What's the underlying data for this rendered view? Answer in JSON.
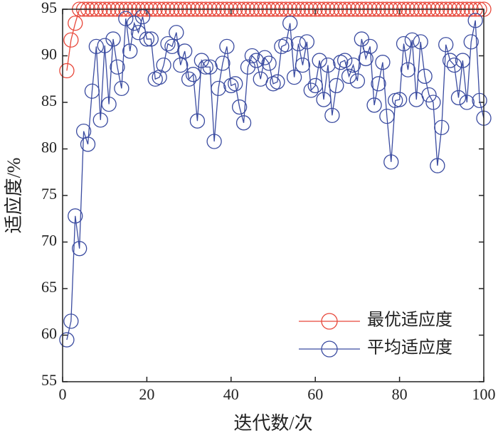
{
  "chart_data": {
    "type": "line",
    "xlabel": "迭代数/次",
    "ylabel": "适应度/%",
    "x": [
      1,
      2,
      3,
      4,
      5,
      6,
      7,
      8,
      9,
      10,
      11,
      12,
      13,
      14,
      15,
      16,
      17,
      18,
      19,
      20,
      21,
      22,
      23,
      24,
      25,
      26,
      27,
      28,
      29,
      30,
      31,
      32,
      33,
      34,
      35,
      36,
      37,
      38,
      39,
      40,
      41,
      42,
      43,
      44,
      45,
      46,
      47,
      48,
      49,
      50,
      51,
      52,
      53,
      54,
      55,
      56,
      57,
      58,
      59,
      60,
      61,
      62,
      63,
      64,
      65,
      66,
      67,
      68,
      69,
      70,
      71,
      72,
      73,
      74,
      75,
      76,
      77,
      78,
      79,
      80,
      81,
      82,
      83,
      84,
      85,
      86,
      87,
      88,
      89,
      90,
      91,
      92,
      93,
      94,
      95,
      96,
      97,
      98,
      99,
      100
    ],
    "series": [
      {
        "name": "最优适应度",
        "color": "#e8473a",
        "values": [
          88.4,
          91.7,
          93.5,
          95,
          95,
          95,
          95,
          95,
          95,
          95,
          95,
          95,
          95,
          95,
          95,
          95,
          95,
          95,
          95,
          95,
          95,
          95,
          95,
          95,
          95,
          95,
          95,
          95,
          95,
          95,
          95,
          95,
          95,
          95,
          95,
          95,
          95,
          95,
          95,
          95,
          95,
          95,
          95,
          95,
          95,
          95,
          95,
          95,
          95,
          95,
          95,
          95,
          95,
          95,
          95,
          95,
          95,
          95,
          95,
          95,
          95,
          95,
          95,
          95,
          95,
          95,
          95,
          95,
          95,
          95,
          95,
          95,
          95,
          95,
          95,
          95,
          95,
          95,
          95,
          95,
          95,
          95,
          95,
          95,
          95,
          95,
          95,
          95,
          95,
          95,
          95,
          95,
          95,
          95,
          95,
          95,
          95,
          95,
          95,
          95
        ]
      },
      {
        "name": "平均适应度",
        "color": "#3a4ba0",
        "values": [
          59.5,
          61.5,
          72.8,
          69.3,
          81.9,
          80.5,
          86.2,
          91,
          83.1,
          91.1,
          84.8,
          91.8,
          88.8,
          86.5,
          94,
          90.5,
          93.5,
          92.5,
          94.2,
          91.8,
          91.8,
          87.5,
          87.7,
          89,
          91.3,
          91,
          92.5,
          89,
          90.5,
          87.5,
          88,
          83,
          89.5,
          88.8,
          88.8,
          80.8,
          86.5,
          89.2,
          91,
          86.8,
          87,
          84.5,
          82.8,
          88.8,
          90,
          89.5,
          87.5,
          89.8,
          89.2,
          87,
          87.2,
          91,
          91.2,
          93.5,
          87.7,
          91.3,
          89,
          91.5,
          86.3,
          86.8,
          89.5,
          85.3,
          89,
          83.6,
          86.8,
          89.3,
          89.5,
          87.8,
          89,
          87.3,
          91.8,
          89.7,
          91,
          84.7,
          87,
          89.3,
          83.5,
          78.6,
          85.2,
          85.3,
          91.3,
          88.5,
          91.7,
          85.3,
          91.5,
          87.8,
          85.8,
          85,
          78.2,
          82.3,
          91.2,
          89.5,
          89,
          85.5,
          89.5,
          85,
          91.5,
          93.8,
          85.2,
          83.3
        ]
      }
    ],
    "xlim": [
      0,
      100
    ],
    "xticks": [
      0,
      20,
      40,
      60,
      80,
      100
    ],
    "ylim": [
      55,
      95
    ],
    "yticks": [
      55,
      60,
      65,
      70,
      75,
      80,
      85,
      90,
      95
    ],
    "legend": "lower right"
  }
}
